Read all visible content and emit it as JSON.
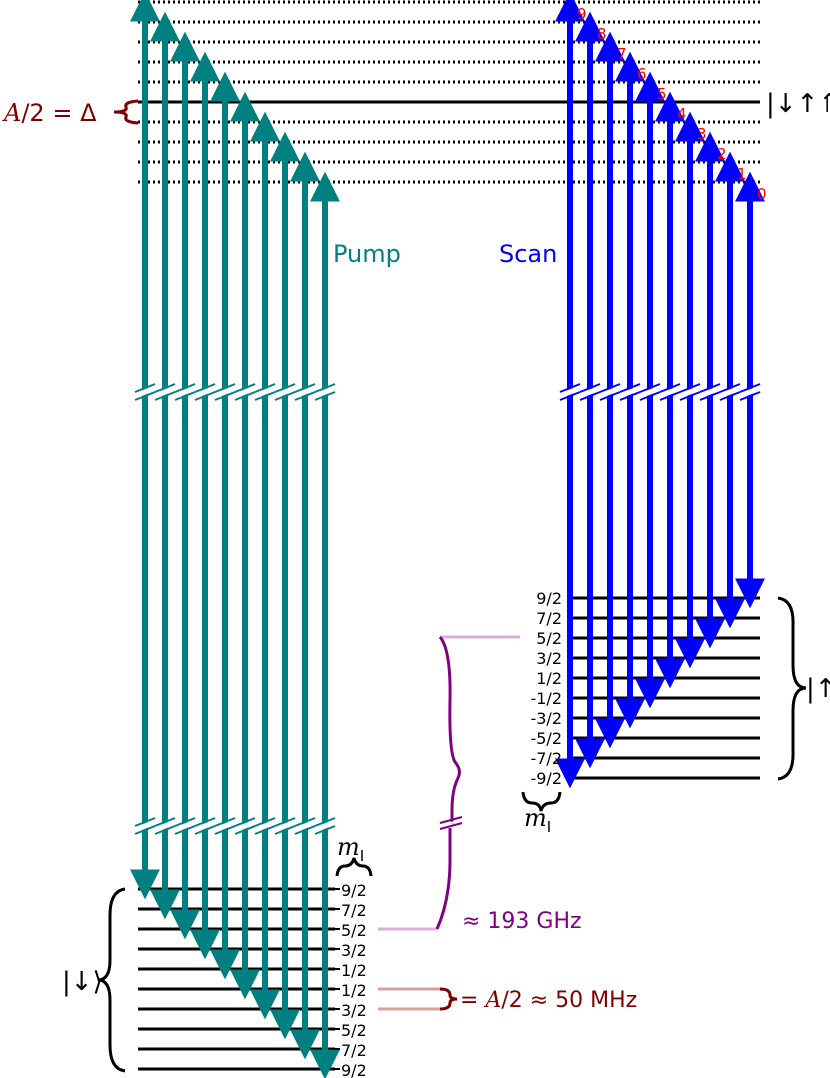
{
  "labels": {
    "pump": "Pump",
    "scan": "Scan",
    "top_eq_prefix": "A",
    "top_eq_rest": "/2 = Δ",
    "mid_eq_prefix": "A",
    "mid_eq_rest": "/2 ≈ 50 MHz",
    "freq_label": "≈ 193 GHz",
    "mi_m": "m",
    "mi_sub": "I",
    "ket_lower": "|↓⟩",
    "ket_mid": "|↑⟩",
    "ket_top": "|↓↑⇑⟩"
  },
  "lower_ticks": [
    "9/2",
    "7/2",
    "5/2",
    "3/2",
    "1/2",
    "1/2",
    "3/2",
    "5/2",
    "7/2",
    "9/2"
  ],
  "mid_ticks": [
    "9/2",
    "7/2",
    "5/2",
    "3/2",
    "1/2",
    "-1/2",
    "-3/2",
    "-5/2",
    "-7/2",
    "-9/2"
  ],
  "scan_numbers": [
    "9",
    "8",
    "7",
    "6",
    "5",
    "4",
    "3",
    "2",
    "1",
    "0"
  ],
  "colors": {
    "pump": "#008080",
    "scan": "#0000ff",
    "numbers": "#ff0000",
    "maroon": "#800000",
    "purple": "#800080",
    "light_purple": "#d8b0d8",
    "light_maroon": "#d4a0a0",
    "line": "#000000"
  }
}
